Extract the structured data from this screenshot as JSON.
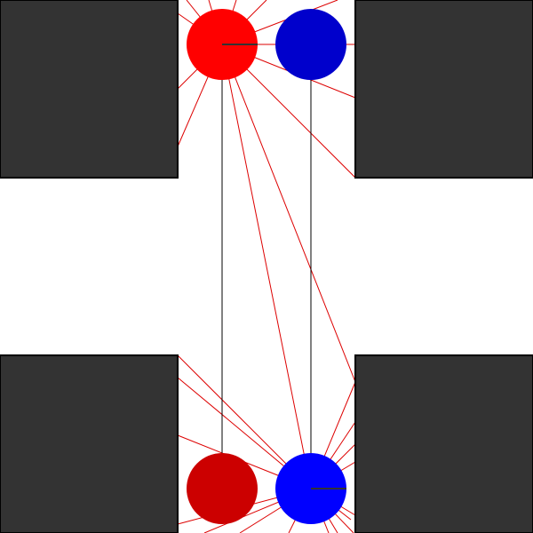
{
  "scene": {
    "colors": {
      "background": "#ffffff",
      "wall": "#333333",
      "wall_outline": "#000000",
      "ray": "#dd0000",
      "path": "#000000",
      "heading": "#333333"
    },
    "agents": [
      {
        "id": "red-agent-top",
        "role": "active",
        "color": "#ff0000"
      },
      {
        "id": "blue-agent-top",
        "role": "goal",
        "color": "#0000cc"
      },
      {
        "id": "red-agent-bottom",
        "role": "goal",
        "color": "#cc0000"
      },
      {
        "id": "blue-agent-bottom",
        "role": "active",
        "color": "#0000ff"
      }
    ]
  }
}
